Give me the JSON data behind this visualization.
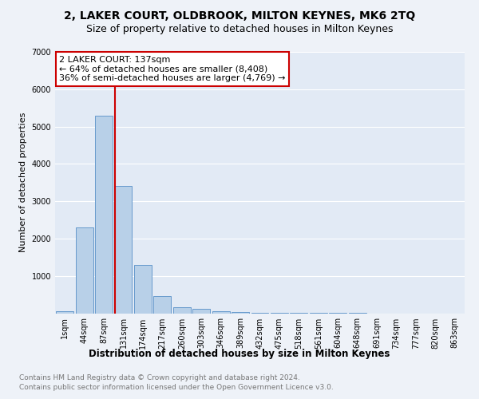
{
  "title": "2, LAKER COURT, OLDBROOK, MILTON KEYNES, MK6 2TQ",
  "subtitle": "Size of property relative to detached houses in Milton Keynes",
  "xlabel": "Distribution of detached houses by size in Milton Keynes",
  "ylabel": "Number of detached properties",
  "footnote1": "Contains HM Land Registry data © Crown copyright and database right 2024.",
  "footnote2": "Contains public sector information licensed under the Open Government Licence v3.0.",
  "bin_labels": [
    "1sqm",
    "44sqm",
    "87sqm",
    "131sqm",
    "174sqm",
    "217sqm",
    "260sqm",
    "303sqm",
    "346sqm",
    "389sqm",
    "432sqm",
    "475sqm",
    "518sqm",
    "561sqm",
    "604sqm",
    "648sqm",
    "691sqm",
    "734sqm",
    "777sqm",
    "820sqm",
    "863sqm"
  ],
  "bar_values": [
    55,
    2300,
    5300,
    3400,
    1300,
    450,
    150,
    120,
    50,
    30,
    10,
    5,
    5,
    3,
    2,
    1,
    0,
    0,
    0,
    0,
    0
  ],
  "bar_color": "#b8d0e8",
  "bar_edge_color": "#6699cc",
  "vline_color": "#cc0000",
  "vline_x": 2.55,
  "annotation_text": "2 LAKER COURT: 137sqm\n← 64% of detached houses are smaller (8,408)\n36% of semi-detached houses are larger (4,769) →",
  "annotation_box_color": "#ffffff",
  "annotation_box_edge_color": "#cc0000",
  "ylim": [
    0,
    7000
  ],
  "yticks": [
    0,
    1000,
    2000,
    3000,
    4000,
    5000,
    6000,
    7000
  ],
  "background_color": "#eef2f8",
  "plot_bg_color": "#e2eaf5",
  "grid_color": "#ffffff",
  "title_fontsize": 10,
  "subtitle_fontsize": 9,
  "axis_label_fontsize": 8.5,
  "ylabel_fontsize": 8,
  "tick_fontsize": 7,
  "annotation_fontsize": 8,
  "footnote_fontsize": 6.5
}
